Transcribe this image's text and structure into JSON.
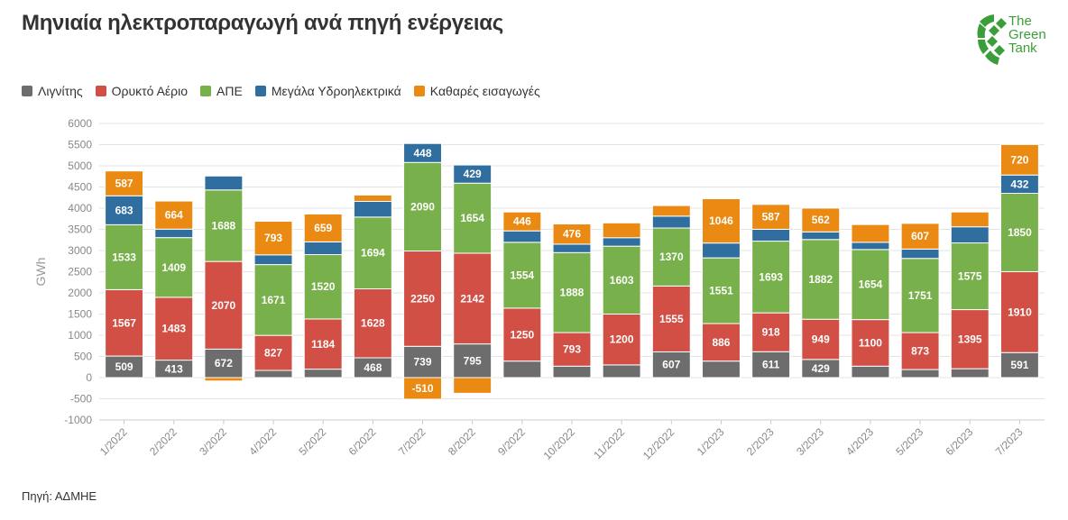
{
  "title": "Μηνιαία ηλεκτροπαραγωγή ανά πηγή ενέργειας",
  "source": "Πηγή: ΑΔΜΗΕ",
  "logo": {
    "line1": "The",
    "line2": "Green",
    "line3": "Tank",
    "color": "#3b9e3b"
  },
  "chart_data": {
    "type": "bar",
    "stacked": true,
    "ylabel": "GWh",
    "xlabel": "",
    "ylim": [
      -1000,
      6000
    ],
    "ytick_step": 500,
    "grid": true,
    "legend_position": "top-left",
    "categories": [
      "1/2022",
      "2/2022",
      "3/2022",
      "4/2022",
      "5/2022",
      "6/2022",
      "7/2022",
      "8/2022",
      "9/2022",
      "10/2022",
      "11/2022",
      "12/2022",
      "1/2023",
      "2/2023",
      "3/2023",
      "4/2023",
      "5/2023",
      "6/2023",
      "7/2023"
    ],
    "series": [
      {
        "name": "Λιγνίτης",
        "color": "#6d6d6d",
        "values": [
          509,
          413,
          672,
          170,
          200,
          468,
          739,
          795,
          390,
          270,
          300,
          607,
          390,
          611,
          429,
          270,
          190,
          210,
          591
        ],
        "labels": [
          true,
          true,
          true,
          false,
          false,
          true,
          true,
          true,
          false,
          false,
          false,
          true,
          false,
          true,
          true,
          false,
          false,
          false,
          true
        ]
      },
      {
        "name": "Ορυκτό Αέριο",
        "color": "#d24f45",
        "values": [
          1567,
          1483,
          2070,
          827,
          1184,
          1628,
          2250,
          2142,
          1250,
          793,
          1200,
          1555,
          886,
          918,
          949,
          1100,
          873,
          1395,
          1910
        ],
        "labels": [
          true,
          true,
          true,
          true,
          true,
          true,
          true,
          true,
          true,
          true,
          true,
          true,
          true,
          true,
          true,
          true,
          true,
          true,
          true
        ]
      },
      {
        "name": "ΑΠΕ",
        "color": "#78b04b",
        "values": [
          1533,
          1409,
          1688,
          1671,
          1520,
          1694,
          2090,
          1654,
          1554,
          1888,
          1603,
          1370,
          1551,
          1693,
          1882,
          1654,
          1751,
          1575,
          1850
        ],
        "labels": [
          true,
          true,
          true,
          true,
          true,
          true,
          true,
          true,
          true,
          true,
          true,
          true,
          true,
          true,
          true,
          true,
          true,
          true,
          true
        ]
      },
      {
        "name": "Μεγάλα Υδροηλεκτρικά",
        "color": "#2f6e9f",
        "values": [
          683,
          200,
          330,
          230,
          300,
          370,
          448,
          429,
          270,
          200,
          200,
          280,
          350,
          280,
          180,
          170,
          220,
          380,
          432
        ],
        "labels": [
          true,
          false,
          false,
          false,
          false,
          false,
          true,
          true,
          false,
          false,
          false,
          false,
          false,
          false,
          false,
          false,
          false,
          false,
          true
        ]
      },
      {
        "name": "Καθαρές εισαγωγές",
        "color": "#ea8a12",
        "values": [
          587,
          664,
          -80,
          793,
          659,
          150,
          -510,
          -370,
          446,
          476,
          350,
          250,
          1046,
          587,
          562,
          420,
          607,
          350,
          720
        ],
        "labels": [
          true,
          true,
          false,
          true,
          true,
          false,
          true,
          false,
          true,
          true,
          false,
          false,
          true,
          true,
          true,
          false,
          true,
          false,
          true
        ]
      }
    ]
  }
}
